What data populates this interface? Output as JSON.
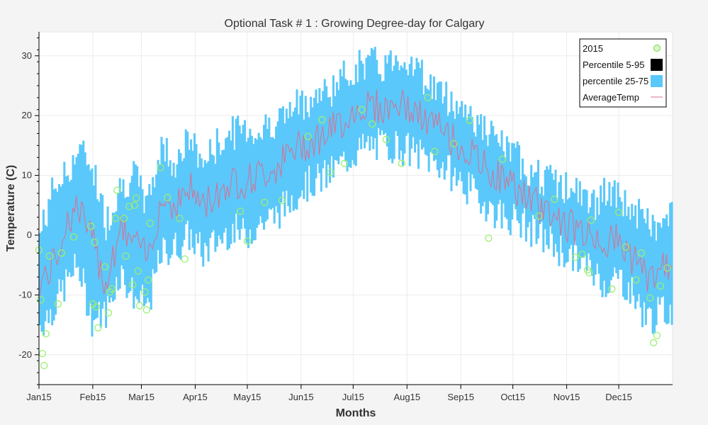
{
  "chart_data": {
    "type": "line",
    "title": "Optional Task # 1 : Growing Degree-day for Calgary",
    "xlabel": "Months",
    "ylabel": "Temperature (C)",
    "xlim": [
      0,
      365
    ],
    "ylim": [
      -25,
      34
    ],
    "grid": true,
    "legend_position": "top-right",
    "x_ticks": [
      {
        "label": "Jan15",
        "day": 0
      },
      {
        "label": "Feb15",
        "day": 31
      },
      {
        "label": "Mar15",
        "day": 59
      },
      {
        "label": "Apr15",
        "day": 90
      },
      {
        "label": "May15",
        "day": 120
      },
      {
        "label": "Jun15",
        "day": 151
      },
      {
        "label": "Jul15",
        "day": 181
      },
      {
        "label": "Aug15",
        "day": 212
      },
      {
        "label": "Sep15",
        "day": 243
      },
      {
        "label": "Oct15",
        "day": 273
      },
      {
        "label": "Nov15",
        "day": 304
      },
      {
        "label": "Dec15",
        "day": 334
      }
    ],
    "y_ticks": [
      -20,
      -10,
      0,
      10,
      20,
      30
    ],
    "series": [
      {
        "name": "2015",
        "kind": "scatter",
        "color": "#aaff88",
        "points": [
          [
            0,
            -2.5
          ],
          [
            1,
            -10.8
          ],
          [
            2,
            -19.8
          ],
          [
            3,
            -21.8
          ],
          [
            4,
            -16.5
          ],
          [
            6,
            -3.5
          ],
          [
            11,
            -11.5
          ],
          [
            13,
            -3
          ],
          [
            20,
            -0.3
          ],
          [
            30,
            1.5
          ],
          [
            31,
            -11.5
          ],
          [
            32,
            -1.2
          ],
          [
            33,
            -12
          ],
          [
            34,
            -15.5
          ],
          [
            38,
            -5.3
          ],
          [
            40,
            -13
          ],
          [
            41,
            -9.5
          ],
          [
            42,
            -9
          ],
          [
            44,
            2.8
          ],
          [
            45,
            7.5
          ],
          [
            49,
            2.8
          ],
          [
            50,
            -3.5
          ],
          [
            52,
            4.8
          ],
          [
            54,
            -8.3
          ],
          [
            55,
            5
          ],
          [
            56,
            6.2
          ],
          [
            57,
            -6
          ],
          [
            58,
            -11.8
          ],
          [
            61,
            -9.5
          ],
          [
            62,
            -12.5
          ],
          [
            63,
            -7.5
          ],
          [
            64,
            2
          ],
          [
            70,
            11.3
          ],
          [
            74,
            6.3
          ],
          [
            81,
            2.8
          ],
          [
            84,
            -4
          ],
          [
            116,
            4
          ],
          [
            120,
            -1
          ],
          [
            130,
            5.5
          ],
          [
            140,
            5.8
          ],
          [
            155,
            16.5
          ],
          [
            163,
            19.3
          ],
          [
            168,
            10.5
          ],
          [
            176,
            12
          ],
          [
            186,
            21
          ],
          [
            192,
            18.6
          ],
          [
            200,
            16
          ],
          [
            209,
            12
          ],
          [
            224,
            23
          ],
          [
            228,
            14
          ],
          [
            239,
            15.3
          ],
          [
            248,
            19.2
          ],
          [
            259,
            -0.5
          ],
          [
            267,
            12.7
          ],
          [
            288,
            3.2
          ],
          [
            297,
            6
          ],
          [
            309,
            -3.7
          ],
          [
            313,
            -3.2
          ],
          [
            316,
            -5.8
          ],
          [
            317,
            -6.3
          ],
          [
            318,
            2.5
          ],
          [
            330,
            -9
          ],
          [
            334,
            3.8
          ],
          [
            338,
            -2
          ],
          [
            344,
            -7.5
          ],
          [
            347,
            -3
          ],
          [
            352,
            -10.5
          ],
          [
            354,
            -18
          ],
          [
            356,
            -16.8
          ],
          [
            358,
            -8.5
          ],
          [
            362,
            -5.5
          ]
        ]
      },
      {
        "name": "Percentile 5-95",
        "kind": "band",
        "color": "#000000"
      },
      {
        "name": "percentile 25-75",
        "kind": "band",
        "color": "#5ac8fa",
        "note_values": "see 'bands' below"
      },
      {
        "name": "AverageTemp",
        "kind": "line",
        "color": "#d87093"
      }
    ],
    "bands": {
      "description": "Daily 25th-75th percentile range and average temperature by day of year (approximated from chart)",
      "day": [
        0,
        8,
        15,
        22,
        30,
        38,
        46,
        54,
        62,
        70,
        78,
        86,
        94,
        102,
        110,
        118,
        126,
        134,
        142,
        150,
        158,
        166,
        174,
        182,
        190,
        198,
        206,
        214,
        222,
        230,
        238,
        246,
        254,
        262,
        270,
        278,
        286,
        294,
        302,
        310,
        318,
        326,
        334,
        342,
        350,
        358,
        365
      ],
      "p25": [
        -15,
        -12,
        -8,
        -5,
        -14,
        -13,
        -6,
        -10,
        -12,
        -3,
        -2,
        0,
        -3,
        -1,
        1,
        0,
        2,
        3,
        5,
        8,
        9,
        10,
        12,
        14,
        15,
        15,
        15,
        14,
        13,
        12,
        10,
        8,
        6,
        4,
        3,
        2,
        0,
        -1,
        -3,
        -4,
        -6,
        -8,
        -7,
        -10,
        -14,
        -13,
        -12
      ],
      "p75": [
        0,
        8,
        10,
        14,
        12,
        2,
        8,
        10,
        5,
        15,
        12,
        16,
        12,
        15,
        17,
        18,
        17,
        19,
        20,
        22,
        23,
        24,
        26,
        28,
        29,
        28,
        30,
        29,
        26,
        24,
        22,
        21,
        18,
        16,
        14,
        12,
        10,
        9,
        8,
        7,
        5,
        7,
        6,
        4,
        2,
        1,
        4
      ],
      "mean": [
        -8,
        -5,
        2,
        5,
        -1,
        -8,
        1,
        -1,
        -4,
        6,
        5,
        8,
        5,
        7,
        9,
        9,
        10,
        11,
        13,
        15,
        16,
        17,
        19,
        21,
        22,
        21,
        22,
        21,
        19,
        18,
        16,
        14,
        12,
        10,
        9,
        7,
        5,
        4,
        2,
        1,
        0,
        -1,
        -1,
        -4,
        -7,
        -6,
        -4
      ]
    }
  }
}
